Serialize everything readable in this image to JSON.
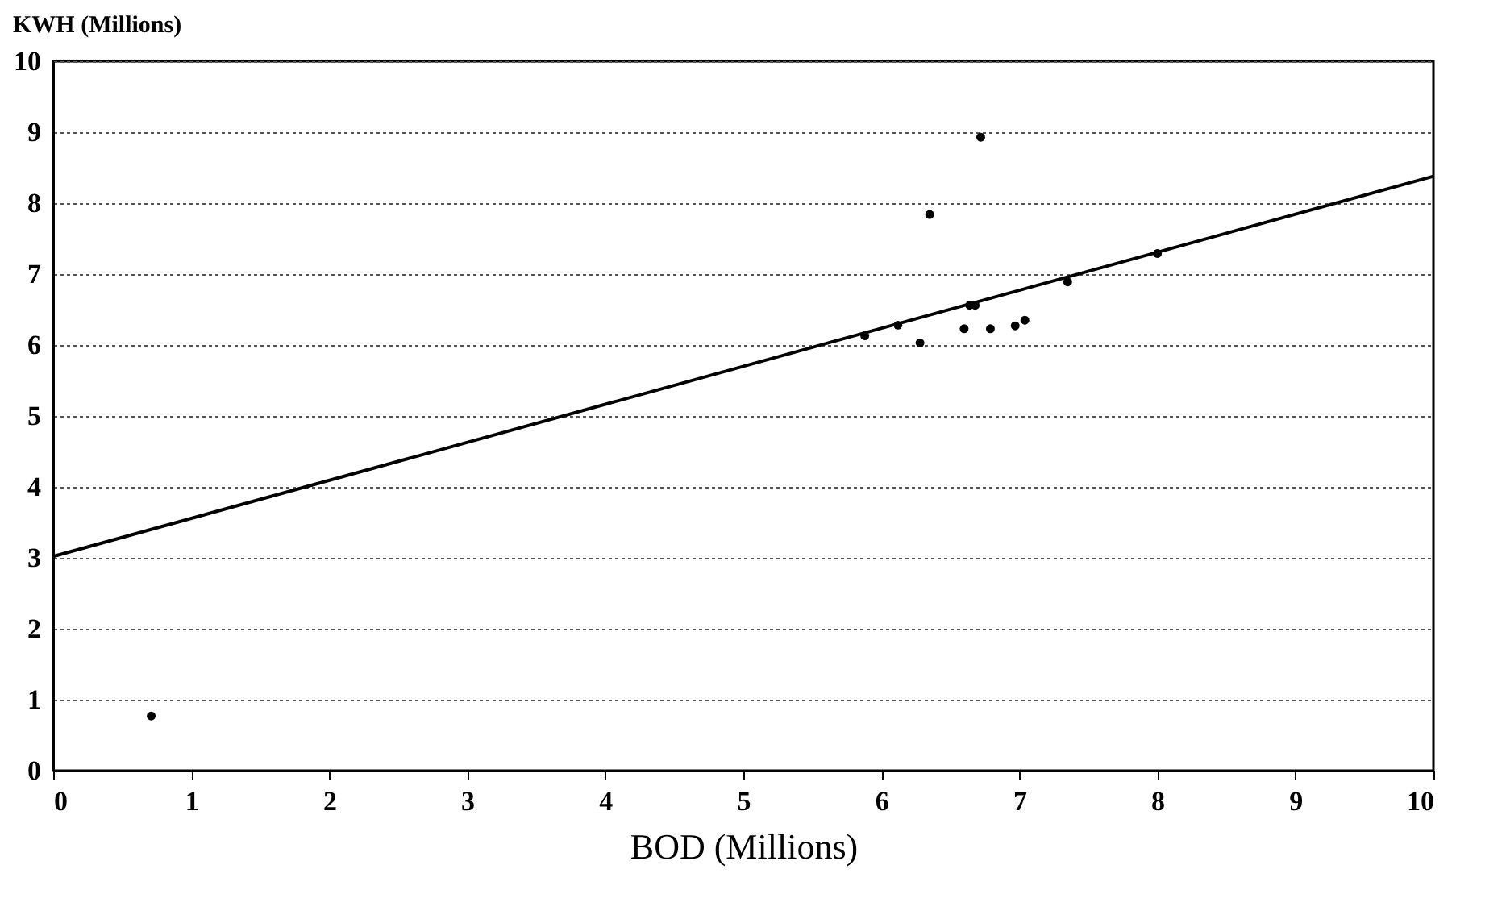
{
  "chart_data": {
    "type": "scatter",
    "xlabel": "BOD (Millions)",
    "ylabel": "KWH (Millions)",
    "xlim": [
      0,
      10
    ],
    "ylim": [
      0,
      10
    ],
    "xticks": [
      0,
      1,
      2,
      3,
      4,
      5,
      6,
      7,
      8,
      9,
      10
    ],
    "yticks": [
      0,
      1,
      2,
      3,
      4,
      5,
      6,
      7,
      8,
      9,
      10
    ],
    "grid": "y",
    "series": [
      {
        "marker": "circle",
        "color": "#000000",
        "x": [
          0.71,
          5.88,
          6.12,
          6.28,
          6.35,
          6.6,
          6.64,
          6.68,
          6.72,
          6.79,
          6.97,
          7.04,
          7.35,
          8.0
        ],
        "values": [
          0.77,
          6.13,
          6.28,
          6.03,
          7.84,
          6.23,
          6.56,
          6.56,
          8.93,
          6.23,
          6.27,
          6.35,
          6.89,
          7.29
        ]
      },
      {
        "type": "line",
        "color": "#000000",
        "x": [
          0,
          10
        ],
        "values": [
          3.02,
          8.38
        ]
      }
    ]
  }
}
